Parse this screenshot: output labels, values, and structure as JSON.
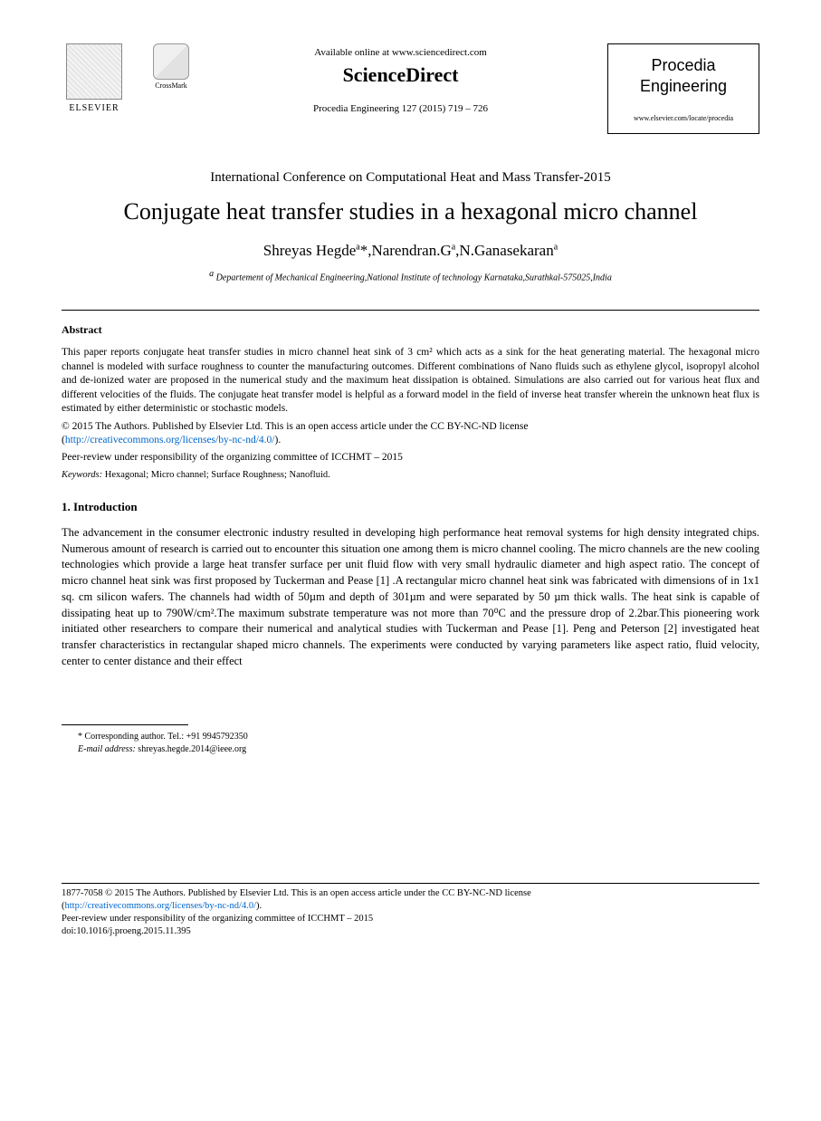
{
  "header": {
    "elsevier_label": "ELSEVIER",
    "crossmark_label": "CrossMark",
    "available_online": "Available online at www.sciencedirect.com",
    "sciencedirect": "ScienceDirect",
    "citation": "Procedia Engineering 127 (2015) 719 – 726",
    "journal_name_line1": "Procedia",
    "journal_name_line2": "Engineering",
    "journal_url": "www.elsevier.com/locate/procedia"
  },
  "conference": "International Conference on Computational Heat and Mass Transfer-2015",
  "title": "Conjugate heat transfer studies in a hexagonal micro channel",
  "authors": {
    "a1_name": "Shreyas Hegde",
    "a1_sup": "a",
    "a1_mark": "*",
    "a2_name": "Narendran.G",
    "a2_sup": "a",
    "a3_name": "N.Ganasekaran",
    "a3_sup": "a"
  },
  "affiliation_sup": "a",
  "affiliation": " Departement of Mechanical Engineering,National Institute of technology Karnataka,Surathkal-575025,India",
  "abstract_label": "Abstract",
  "abstract_text": "This paper reports conjugate heat transfer studies in micro channel heat sink of 3 cm² which acts as a sink for the heat generating material. The hexagonal micro channel is modeled with surface roughness to counter the manufacturing outcomes. Different combinations of Nano fluids such as ethylene glycol, isopropyl alcohol and de-ionized water are proposed in the numerical study and the maximum heat dissipation is obtained. Simulations are also carried out for various heat flux and different velocities of the fluids. The conjugate heat transfer model is helpful as a forward model in the field of inverse heat transfer wherein the unknown heat flux is estimated by either deterministic or stochastic models.",
  "copyright_line": "© 2015 The Authors. Published by Elsevier Ltd. This is an open access article under the CC BY-NC-ND license",
  "license_link_text": "http://creativecommons.org/licenses/by-nc-nd/4.0/",
  "peer_review": "Peer-review under responsibility of the organizing committee of ICCHMT – 2015",
  "keywords_label": "Keywords:",
  "keywords_text": " Hexagonal; Micro channel; Surface Roughness; Nanofluid.",
  "intro_heading": "1. Introduction",
  "intro_body": "The advancement in the consumer electronic industry resulted in developing high performance heat removal systems for high density integrated chips. Numerous amount of research is carried out to encounter this situation one among them is micro channel cooling. The micro channels are the new cooling technologies which provide a large heat transfer surface per unit fluid flow with very small hydraulic diameter and high aspect ratio. The concept of micro channel heat sink was first proposed by Tuckerman and Pease [1] .A rectangular micro channel heat sink was fabricated with dimensions of in 1x1 sq. cm silicon wafers. The channels had width of 50µm and depth of 301µm and were separated by 50 µm thick walls. The heat sink is capable of dissipating heat up to 790W/cm².The maximum substrate temperature was not more than 70⁰C and the pressure drop of 2.2bar.This pioneering work initiated other researchers to compare their numerical and analytical studies with Tuckerman and Pease [1]. Peng and Peterson [2] investigated heat transfer characteristics in rectangular shaped micro channels. The experiments were conducted by varying parameters like aspect ratio, fluid velocity, center to center distance and their effect",
  "footnote": {
    "corresponding": "* Corresponding author. Tel.: +91 9945792350",
    "email_label": "E-mail address:",
    "email": "shreyas.hegde.2014@ieee.org"
  },
  "footer": {
    "copyright": "1877-7058 © 2015 The Authors. Published by Elsevier Ltd. This is an open access article under the CC BY-NC-ND license",
    "license_link_text": "http://creativecommons.org/licenses/by-nc-nd/4.0/",
    "peer_review": "Peer-review under responsibility of the organizing committee of ICCHMT – 2015",
    "doi": "doi:10.1016/j.proeng.2015.11.395"
  },
  "colors": {
    "link": "#0066cc",
    "text": "#000000",
    "background": "#ffffff"
  }
}
